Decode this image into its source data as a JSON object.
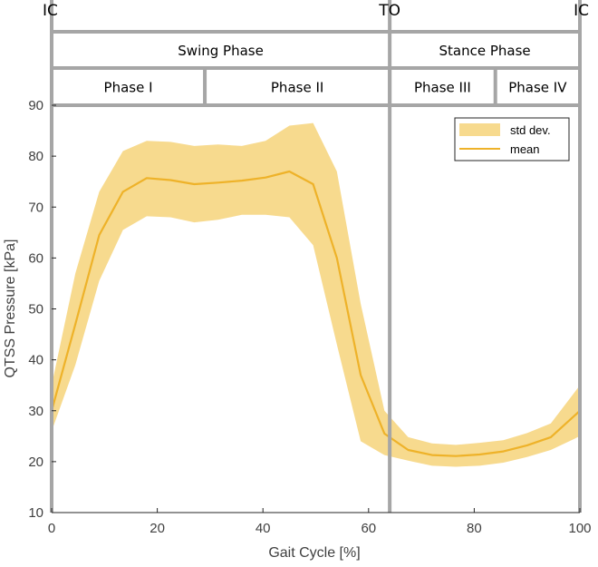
{
  "chart_data": {
    "type": "area",
    "xlabel": "Gait Cycle [%]",
    "ylabel": "QTSS Pressure [kPa]",
    "xlim": [
      0,
      100
    ],
    "ylim": [
      10,
      90
    ],
    "xticks": [
      0,
      20,
      40,
      60,
      80,
      100
    ],
    "yticks": [
      10,
      20,
      30,
      40,
      50,
      60,
      70,
      80,
      90
    ],
    "grid": false,
    "legend": {
      "position": "top-right",
      "entries": [
        "std dev.",
        "mean"
      ]
    },
    "colors": {
      "band": "#f7da8e",
      "line": "#eeb229",
      "vline": "#a6a6a6"
    },
    "events": [
      {
        "label": "IC",
        "x": 0
      },
      {
        "label": "TO",
        "x": 64
      },
      {
        "label": "IC",
        "x": 100
      }
    ],
    "phases_row1": [
      {
        "label": "Swing Phase",
        "from": 0,
        "to": 64
      },
      {
        "label": "Stance Phase",
        "from": 64,
        "to": 100
      }
    ],
    "phases_row2": [
      {
        "label": "Phase I",
        "from": 0,
        "to": 29
      },
      {
        "label": "Phase II",
        "from": 29,
        "to": 64
      },
      {
        "label": "Phase III",
        "from": 64,
        "to": 84
      },
      {
        "label": "Phase IV",
        "from": 84,
        "to": 100
      }
    ],
    "series": [
      {
        "name": "mean",
        "x": [
          0,
          4.5,
          9,
          13.5,
          18,
          22.5,
          27,
          31.5,
          36,
          40.5,
          45,
          49.5,
          54,
          58.5,
          63,
          67.5,
          72,
          76.5,
          81,
          85.5,
          90,
          94.5,
          100
        ],
        "values": [
          30,
          47,
          64.5,
          73,
          75.7,
          75.3,
          74.5,
          74.8,
          75.2,
          75.8,
          77,
          74.5,
          60,
          37,
          25.5,
          22.3,
          21.3,
          21.1,
          21.4,
          22,
          23.2,
          24.8,
          30
        ]
      },
      {
        "name": "std dev.",
        "x": [
          0,
          4.5,
          9,
          13.5,
          18,
          22.5,
          27,
          31.5,
          36,
          40.5,
          45,
          49.5,
          54,
          58.5,
          63,
          67.5,
          72,
          76.5,
          81,
          85.5,
          90,
          94.5,
          100
        ],
        "upper": [
          35,
          57,
          73,
          81,
          83,
          82.8,
          82,
          82.3,
          82,
          83,
          86,
          86.5,
          77,
          51,
          30,
          24.8,
          23.6,
          23.3,
          23.7,
          24.2,
          25.6,
          27.5,
          35
        ],
        "lower": [
          26,
          39,
          55.5,
          65.5,
          68.2,
          68,
          67,
          67.5,
          68.5,
          68.5,
          68,
          62.5,
          43,
          24,
          21.3,
          20.2,
          19.2,
          19,
          19.2,
          19.8,
          20.9,
          22.3,
          25
        ]
      }
    ]
  }
}
